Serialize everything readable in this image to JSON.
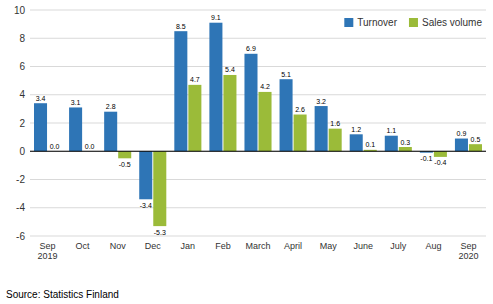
{
  "chart_data": {
    "type": "bar",
    "categories": [
      "Sep\n2019",
      "Oct",
      "Nov",
      "Dec",
      "Jan",
      "Feb",
      "March",
      "April",
      "May",
      "June",
      "July",
      "Aug",
      "Sep\n2020"
    ],
    "series": [
      {
        "name": "Turnover",
        "color": "#2E75B6",
        "values": [
          3.4,
          3.1,
          2.8,
          -3.4,
          8.5,
          9.1,
          6.9,
          5.1,
          3.2,
          1.2,
          1.1,
          -0.1,
          0.9
        ],
        "value_labels": [
          "3.4",
          "3.1",
          "2.8",
          "-3.4",
          "8.5",
          "9.1",
          "6.9",
          "5.1",
          "3.2",
          "1.2",
          "1.1",
          "-0.1",
          "0.9"
        ]
      },
      {
        "name": "Sales volume",
        "color": "#9BBB39",
        "values": [
          0.0,
          0.0,
          -0.5,
          -5.3,
          4.7,
          5.4,
          4.2,
          2.6,
          1.6,
          0.1,
          0.3,
          -0.4,
          0.5
        ],
        "value_labels": [
          "0.0",
          "0.0",
          "-0.5",
          "-5.3",
          "4.7",
          "5.4",
          "4.2",
          "2.6",
          "1.6",
          "0.1",
          "0.3",
          "-0.4",
          "0.5"
        ]
      }
    ],
    "ylim": [
      -6,
      10
    ],
    "yticks": [
      -6,
      -4,
      -2,
      0,
      2,
      4,
      6,
      8,
      10
    ],
    "grid": true,
    "legend": "upper right",
    "data_labels": true,
    "annotations": [
      "Source: Statistics Finland"
    ]
  }
}
